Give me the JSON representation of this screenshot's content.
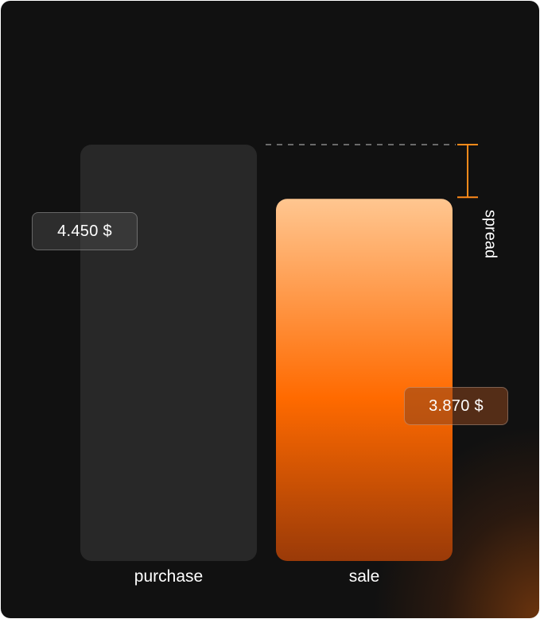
{
  "chart_data": {
    "type": "bar",
    "categories": [
      "purchase",
      "sale"
    ],
    "values": [
      4450,
      3870
    ],
    "value_labels": [
      "4.450 $",
      "3.870 $"
    ],
    "annotation": "spread",
    "colors": {
      "purchase": "#282828",
      "sale_top": "#FFC690",
      "sale_mid": "#FF6A00",
      "sale_bottom": "#9A3A08",
      "bracket": "#FF8A1A",
      "background": "#111111"
    }
  }
}
